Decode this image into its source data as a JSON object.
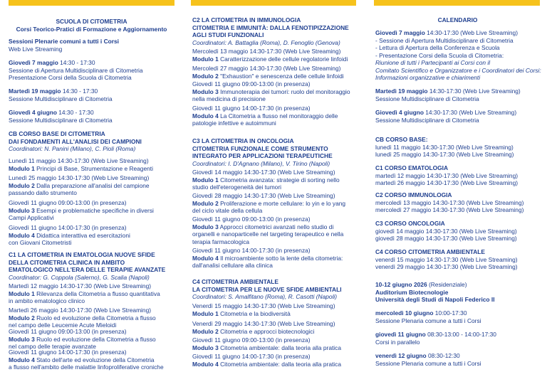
{
  "columns": [
    {
      "blocks": [
        {
          "lines": [
            {
              "bold": "SCUOLA DI CITOMETRIA"
            },
            {
              "bold": "Corsi Teorico-Pratici di Formazione e Aggiornamento"
            }
          ]
        },
        {
          "lines": [
            {
              "bold": "Sessioni Plenarie comuni a tutti i Corsi"
            },
            {
              "text": "Web Live Streaming"
            }
          ]
        },
        {
          "lines": [
            {
              "bold": "Giovedì 7 maggio",
              "text": "14:30 - 17:30"
            },
            {
              "text": "Sessione di Apertura Multidisciplinare di Citometria"
            },
            {
              "text": "Presentazione Corsi della Scuola di Citometria"
            }
          ]
        },
        {
          "lines": [
            {
              "bold": "Martedì 19 maggio",
              "text": "14:30 - 17:30"
            },
            {
              "text": "Sessione Multidisciplinare di Citometria"
            }
          ]
        },
        {
          "lines": [
            {
              "bold": "Giovedì 4 giugno",
              "text": "14:30 - 17:30"
            },
            {
              "text": "Sessione Multidisciplinare di Citometria"
            }
          ]
        },
        {
          "lines": [
            {
              "bold": "CB CORSO BASE DI CITOMETRIA"
            },
            {
              "bold": "DAI FONDAMENTI ALL'ANALISI DEI CAMPIONI"
            },
            {
              "italic": "Coordinatori: N. Panini (Milano), C. Pioli (Roma)"
            }
          ]
        },
        {
          "lines": [
            {
              "text": "Lunedì 11 maggio 14:30-17:30 (Web Live Streaming)"
            },
            {
              "bold": "Modulo 1",
              "text": "Principi di Base, Strumentazione e Reagenti"
            }
          ]
        },
        {
          "lines": [
            {
              "text": "Lunedì 25 maggio 14:30-17:30 (Web Live Streaming)"
            },
            {
              "bold": "Modulo 2",
              "text": "Dalla preparazione all'analisi del campione"
            },
            {
              "text": "passando dallo strumento"
            }
          ]
        },
        {
          "lines": [
            {
              "text": "Giovedì 11 giugno 09:00-13:00 (in presenza)"
            },
            {
              "bold": "Modulo 3",
              "text": "Esempi e problematiche specifiche in diversi"
            },
            {
              "text": "Campi Applicativi"
            }
          ]
        },
        {
          "lines": [
            {
              "text": "Giovedì 11 giugno 14:00-17:30 (in presenza)"
            },
            {
              "bold": "Modulo 4",
              "text": "Didattica interattiva ed esercitazioni"
            },
            {
              "text": "con Giovani Citometristi"
            }
          ]
        },
        {
          "lines": [
            {
              "bold": "C1 LA CITOMETRIA IN EMATOLOGIA NUOVE SFIDE"
            },
            {
              "bold": "DELLA CITOMETRIA CLINICA IN AMBITO"
            },
            {
              "bold": "EMATOLOGICO NELL'ERA DELLE TERAPIE AVANZATE"
            },
            {
              "italic": "Coordinator: G. Coppola (Salerno), G. Scalia (Napoli)"
            }
          ]
        },
        {
          "lines": [
            {
              "text": "Martedì 12 maggio 14:30-17:30 (Web Live Streaming)"
            },
            {
              "bold": "Modulo 1",
              "text": "Rilevanza della Citometria a flusso quantitativa"
            },
            {
              "text": "in ambito ematologico clinico"
            }
          ]
        },
        {
          "lines": [
            {
              "text": "Martedì 26 maggio 14:30-17:30 (Web Live Streaming)"
            },
            {
              "bold": "Modulo 2",
              "text": "Ruolo ed evoluzione della Citometria a flusso"
            },
            {
              "text": "nel campo delle Leucemie Acute Mieloidi"
            }
          ]
        },
        {
          "lines": [
            {
              "text": "Giovedì 11 giugno 09:00-13:00 (in presenza)"
            },
            {
              "bold": "Modulo 3",
              "text": "Ruolo ed evoluzione della Citometria a flusso"
            },
            {
              "text": "nel campo delle terapie avanzate"
            }
          ]
        },
        {
          "lines": [
            {
              "text": "Giovedì 11 giugno 14:00-17:30 (in presenza)"
            },
            {
              "bold": "Modulo 4",
              "text": "Stato dell'arte ed evoluzione della Citometria"
            },
            {
              "text": "a flusso nell'ambito delle malattie linfoproliferative croniche"
            }
          ]
        }
      ]
    },
    {
      "blocks": [
        {
          "lines": [
            {
              "bold": "C2 LA CITOMETRIA IN IMMUNOLOGIA"
            },
            {
              "bold": "CITOMETRIA E IMMUNITÀ: DALLA FENOTIPIZZAZIONE"
            },
            {
              "bold": "AGLI STUDI FUNZIONALI"
            },
            {
              "italic": "Coordinatori: A. Battaglia (Roma), D. Fenoglio (Genova)"
            }
          ]
        },
        {
          "lines": [
            {
              "text": "Mercoledì 13 maggio 14:30-17:30 (Web Live Streaming)"
            },
            {
              "bold": "Modulo 1",
              "text": "Caratterizzazione delle cellule regolatorie linfoidi"
            }
          ]
        },
        {
          "lines": [
            {
              "text": "Mercoledì 27 maggio 14:30-17:30 (Web Live Streaming)"
            },
            {
              "bold": "Modulo 2",
              "text": "\"Exhaustion\" e senescenza delle cellule linfoidi"
            }
          ]
        },
        {
          "lines": [
            {
              "text": "Giovedì 11 giugno 09:00-13:00 (in presenza)"
            },
            {
              "bold": "Modulo 3",
              "text": "Immunoterapia dei tumori: ruolo del monitoraggio"
            },
            {
              "text": "nella medicina di precisione"
            }
          ]
        },
        {
          "lines": [
            {
              "text": "Giovedì 11 giugno 14:00-17:30 (in presenza)"
            },
            {
              "bold": "Modulo 4",
              "text": "La Citometria a flusso nel monitoraggio delle"
            },
            {
              "text": "patologie infettive e autoimmuni"
            }
          ]
        },
        {
          "lines": [
            {
              "bold": "C3 LA CITOMETRIA IN ONCOLOGIA"
            },
            {
              "bold": "CITOMETRIA FUNZIONALE COME STRUMENTO"
            },
            {
              "bold": "INTEGRATO PER APPLICAZIONI TERAPEUTICHE"
            },
            {
              "italic": "Coordinatori: I. D'Agnano (Milano), V. Tirino (Napoli)"
            }
          ]
        },
        {
          "lines": [
            {
              "text": "Giovedì 14 maggio 14:30-17:30 (Web Live Streaming)"
            },
            {
              "bold": "Modulo 1",
              "text": "Citometria avanzata: strategie di sorting nello"
            },
            {
              "text": "studio dell'eterogeneità dei tumori"
            }
          ]
        },
        {
          "lines": [
            {
              "text": "Giovedì 28 maggio 14:30-17:30 (Web Live Streaming)"
            },
            {
              "bold": "Modulo 2",
              "text": "Proliferazione e morte cellulare: lo yin e lo yang"
            },
            {
              "text": "del ciclo vitale della cellula"
            }
          ]
        },
        {
          "lines": [
            {
              "text": "Giovedì 11 giugno 09:00-13:00 (in presenza)"
            },
            {
              "bold": "Modulo 3",
              "text": "Approcci citometrici avanzati nello studio di"
            },
            {
              "text": "organelli e nanoparticelle nel targeting terapeutico e nella"
            },
            {
              "text": "terapia farmacologica"
            }
          ]
        },
        {
          "lines": [
            {
              "text": "Giovedì 11 giugno 14:00-17:30 (in presenza)"
            },
            {
              "bold": "Modulo 4",
              "text": "Il microambiente sotto la lente della citometria:"
            },
            {
              "text": "dall'analisi cellulare alla clinica"
            }
          ]
        },
        {
          "lines": [
            {
              "bold": "C4 CITOMETRIA AMBIENTALE"
            },
            {
              "bold": "LA CITOMETRIA PER LE NUOVE SFIDE AMBIENTALI"
            },
            {
              "italic": "Coordinatori: S. Amalfitano (Roma), R. Casotti (Napoli)"
            }
          ]
        },
        {
          "lines": [
            {
              "text": "Venerdì 15 maggio 14:30-17:30 (Web Live Streaming)"
            },
            {
              "bold": "Modulo 1",
              "text": "Citometria e la biodiversità"
            }
          ]
        },
        {
          "lines": [
            {
              "text": "Venerdì 29 maggio 14:30-17:30 (Web Live Streaming)"
            },
            {
              "bold": "Modulo 2",
              "text": "Citometria e approcci biotecnologici"
            }
          ]
        },
        {
          "lines": [
            {
              "text": "Giovedì 11 giugno 09:00-13:00 (in presenza)"
            },
            {
              "bold": "Modulo 3",
              "text": "Citometria ambientale: dalla teoria alla pratica"
            }
          ]
        },
        {
          "lines": [
            {
              "text": "Giovedì 11 giugno 14:00-17:30 (in presenza)"
            },
            {
              "bold": "Modulo 4",
              "text": "Citometria ambientale: dalla teoria alla pratica"
            }
          ]
        }
      ]
    },
    {
      "blocks": [
        {
          "lines": [
            {
              "bold": "CALENDARIO"
            }
          ]
        },
        {
          "lines": [
            {
              "bold": "Giovedì 7 maggio",
              "text": "14:30-17:30 (Web Live Streaming)"
            },
            {
              "text": "- Sessione di Apertura Multidisciplinare di Citometria"
            },
            {
              "text": "- Lettura di Apertura della Conferenza e Scuola"
            },
            {
              "text": "- Presentazione Corsi della Scuola di Citometria:"
            },
            {
              "italic": "Riunione di tutti i Partecipanti ai Corsi con il"
            },
            {
              "italic": "Comitato Scientifico e Organizzatore e i Coordinatori dei Corsi:"
            },
            {
              "italic": "Informazioni organizzative e chiarimenti"
            }
          ]
        },
        {
          "lines": [
            {
              "bold": "Martedì 19 maggio",
              "text": "14:30-17:30 (Web Live Streaming)"
            },
            {
              "text": "Sessione Multidisciplinare di Citometria"
            }
          ]
        },
        {
          "lines": [
            {
              "bold": "Giovedì 4 giugno",
              "text": "14:30-17:30 (Web Live Streaming)"
            },
            {
              "text": "Sessione Multidisciplinare di Citometria"
            }
          ]
        },
        {
          "lines": [
            {
              "bold": "CB CORSO BASE:"
            },
            {
              "text": "lunedì 11 maggio 14:30-17:30 (Web Live Streaming)"
            },
            {
              "text": "lunedì 25 maggio 14:30-17:30 (Web Live Streaming)"
            }
          ]
        },
        {
          "lines": [
            {
              "bold": "C1 CORSO EMATOLOGIA"
            },
            {
              "text": "martedì 12 maggio 14:30-17:30 (Web Live Streaming)"
            },
            {
              "text": "martedì 26 maggio 14:30-17:30 (Web Live Streaming)"
            }
          ]
        },
        {
          "lines": [
            {
              "bold": "C2 CORSO IMMUNOLOGIA"
            },
            {
              "text": "mercoledì 13 maggio 14:30-17:30 (Web Live Streaming)"
            },
            {
              "text": "mercoledì 27 maggio 14:30-17:30 (Web Live Streaming)"
            }
          ]
        },
        {
          "lines": [
            {
              "bold": "C3 CORSO ONCOLOGIA"
            },
            {
              "text": "giovedì 14 maggio 14:30-17:30 (Web Live Streaming)"
            },
            {
              "text": "giovedì 28 maggio 14:30-17:30 (Web Live Streaming)"
            }
          ]
        },
        {
          "lines": [
            {
              "bold": "C4 CORSO CITOMETRIA AMBIENTALE"
            },
            {
              "text": "venerdì 15 maggio 14:30-17:30 (Web Live Streaming)"
            },
            {
              "text": "venerdì 29 maggio 14:30-17:30 (Web Live Streaming)"
            }
          ]
        },
        {
          "lines": [
            {
              "bold": "10-12 giugno 2026",
              "text": "(Residenziale)"
            },
            {
              "bold": "Auditorium Biotecnologie"
            },
            {
              "bold": "Università degli Studi di Napoli Federico II"
            }
          ]
        },
        {
          "lines": [
            {
              "bold": "mercoledì 10 giugno",
              "text": "10:00-17:30"
            },
            {
              "text": "Sessione Plenaria comune a tutti i Corsi"
            }
          ]
        },
        {
          "lines": [
            {
              "bold": "giovedì 11 giugno",
              "text": "08:30-13:00 - 14:00-17:30"
            },
            {
              "text": "Corsi in parallelo"
            }
          ]
        },
        {
          "lines": [
            {
              "bold": "venerdì 12 giugno",
              "text": "08:30-12:30"
            },
            {
              "text": "Sessione Plenaria comune a tutti i Corsi"
            }
          ]
        }
      ]
    }
  ]
}
